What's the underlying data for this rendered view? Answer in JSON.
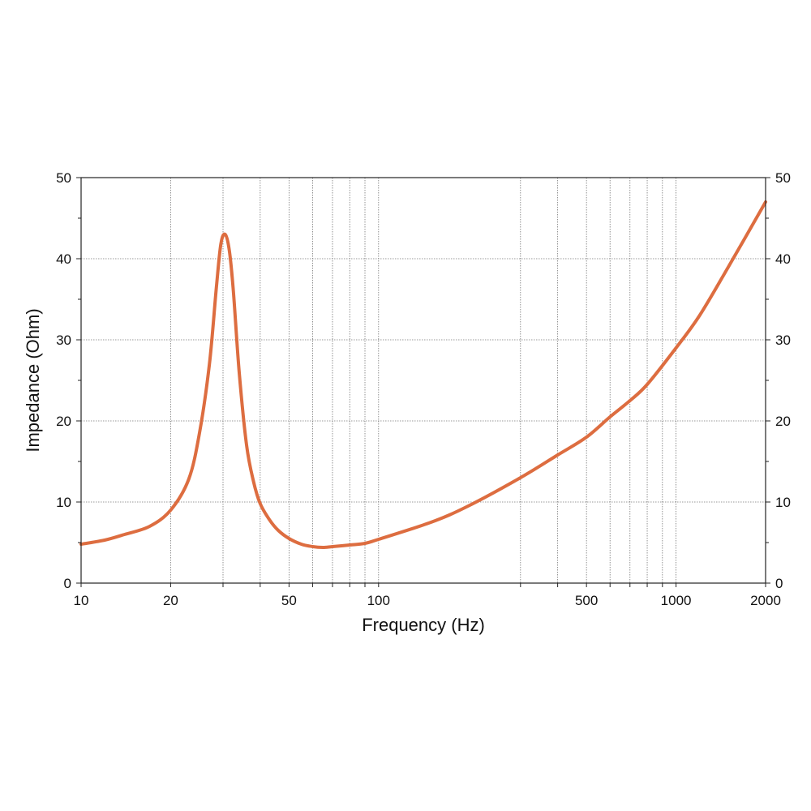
{
  "chart_data": {
    "type": "line",
    "xlabel": "Frequency (Hz)",
    "ylabel": "Impedance (Ohm)",
    "x_scale": "log",
    "xlim": [
      10,
      2000
    ],
    "ylim": [
      0,
      50
    ],
    "grid": true,
    "x_ticks": [
      10,
      20,
      50,
      100,
      500,
      1000,
      2000
    ],
    "x_tick_labels": [
      "10",
      "20",
      "50",
      "100",
      "500",
      "1000",
      "2000"
    ],
    "x_minor_grid": [
      30,
      40,
      60,
      70,
      80,
      90,
      300,
      400,
      600,
      700,
      800,
      900
    ],
    "y_ticks": [
      0,
      10,
      20,
      30,
      40,
      50
    ],
    "y_tick_labels": [
      "0",
      "10",
      "20",
      "30",
      "40",
      "50"
    ],
    "y_minor_ticks": [
      5,
      15,
      25,
      35,
      45
    ],
    "series": [
      {
        "name": "Impedance",
        "color": "#dd6d40",
        "x": [
          10,
          12,
          14,
          17,
          20,
          23,
          25,
          27,
          28.5,
          29.5,
          30.5,
          31.5,
          32.5,
          34,
          36,
          38,
          40,
          43,
          46,
          50,
          55,
          60,
          65,
          70,
          80,
          90,
          100,
          150,
          200,
          300,
          400,
          500,
          600,
          700,
          800,
          1000,
          1200,
          1500,
          2000
        ],
        "y": [
          4.8,
          5.3,
          6.0,
          7.0,
          9.0,
          12.8,
          18.5,
          27.0,
          36.5,
          41.8,
          43.0,
          41.0,
          36.0,
          26.0,
          17.0,
          12.5,
          9.8,
          7.8,
          6.5,
          5.5,
          4.8,
          4.5,
          4.4,
          4.5,
          4.7,
          4.9,
          5.4,
          7.5,
          9.5,
          13.0,
          15.8,
          18.0,
          20.5,
          22.5,
          24.5,
          29.0,
          33.0,
          39.0,
          47.0
        ]
      }
    ]
  }
}
